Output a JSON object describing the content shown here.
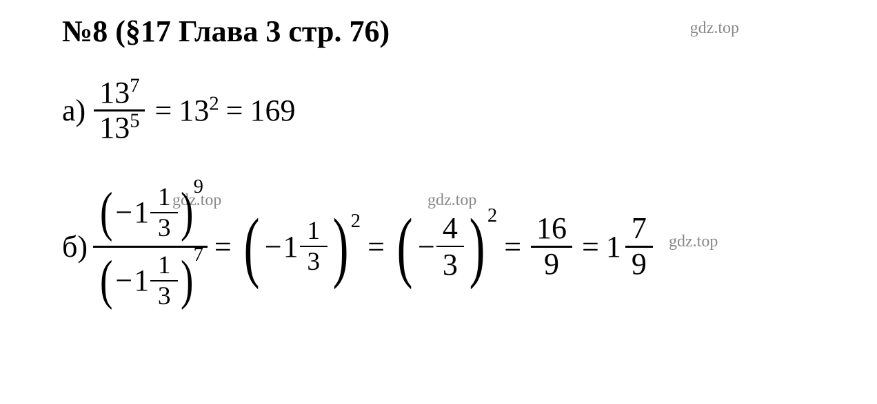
{
  "header": "№8 (§17 Глава 3  стр. 76)",
  "watermark": "gdz.top",
  "colors": {
    "text": "#000000",
    "watermark": "#888888",
    "background": "#ffffff"
  },
  "fonts": {
    "family": "Times New Roman",
    "header_size": 44,
    "body_size": 44,
    "watermark_size": 24
  },
  "problem_a": {
    "label": "а)",
    "frac_num_base": "13",
    "frac_num_exp": "7",
    "frac_den_base": "13",
    "frac_den_exp": "5",
    "step1_base": "13",
    "step1_exp": "2",
    "result": "169"
  },
  "problem_b": {
    "label": "б)",
    "num_neg": "−",
    "num_whole": "1",
    "num_frac_top": "1",
    "num_frac_bot": "3",
    "num_exp": "9",
    "den_neg": "−",
    "den_whole": "1",
    "den_frac_top": "1",
    "den_frac_bot": "3",
    "den_exp": "7",
    "step1_neg": "−",
    "step1_whole": "1",
    "step1_frac_top": "1",
    "step1_frac_bot": "3",
    "step1_exp": "2",
    "step2_neg": "−",
    "step2_frac_top": "4",
    "step2_frac_bot": "3",
    "step2_exp": "2",
    "step3_top": "16",
    "step3_bot": "9",
    "result_whole": "1",
    "result_frac_top": "7",
    "result_frac_bot": "9"
  },
  "eq": "="
}
